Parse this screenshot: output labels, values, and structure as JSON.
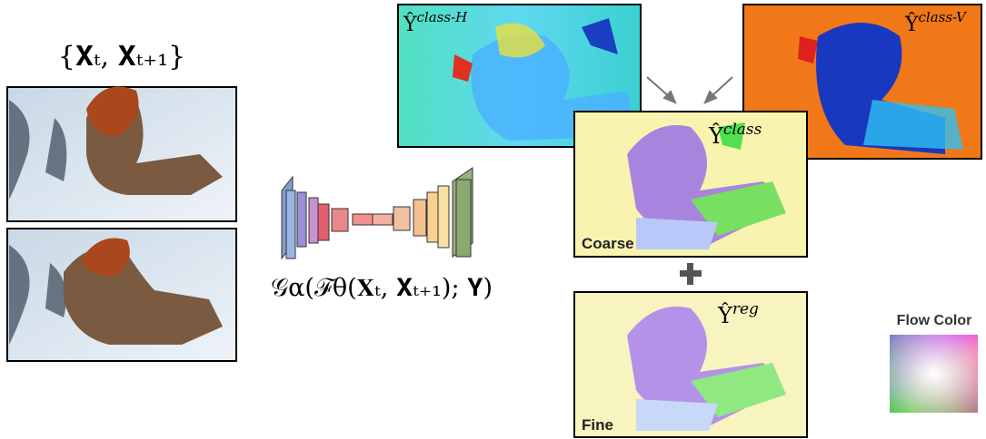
{
  "input_label": "{𝐗ₜ, 𝐗ₜ₊₁}",
  "network_label": "𝒢α(ℱθ(𝐗ₜ, 𝐗ₜ₊₁); 𝐘)",
  "outputs": [
    {
      "symbol": "Ŷ",
      "superscript": "class-H"
    },
    {
      "symbol": "Ŷ",
      "superscript": "class-V"
    },
    {
      "symbol": "Ŷ",
      "superscript": "class",
      "caption": "Coarse"
    },
    {
      "symbol": "Ŷ",
      "superscript": "reg",
      "caption": "Fine"
    }
  ],
  "legend_title": "Flow Color"
}
